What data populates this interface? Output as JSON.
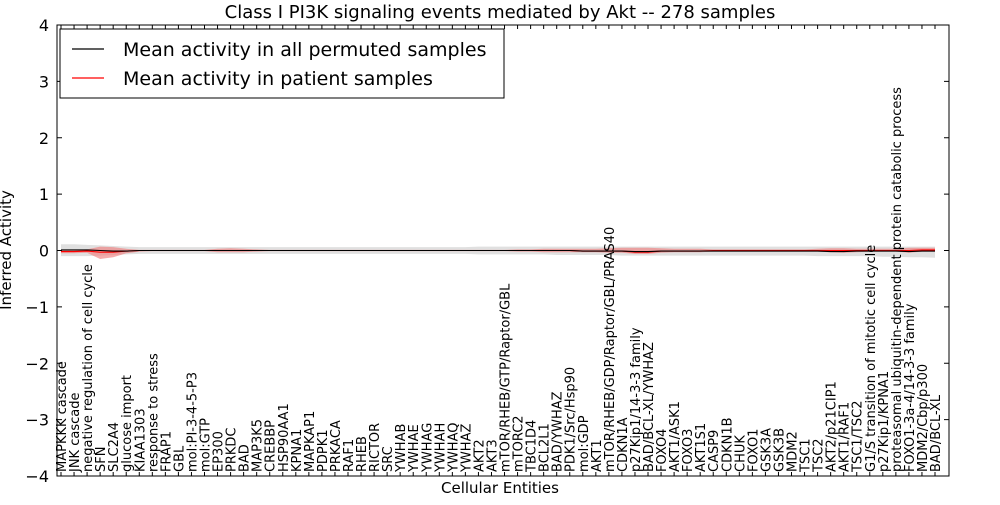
{
  "chart_data": {
    "type": "line",
    "title": "Class I PI3K signaling events mediated by Akt -- 278 samples",
    "xlabel": "Cellular Entities",
    "ylabel": "Inferred Activity",
    "ylim": [
      -4,
      4
    ],
    "yticks": [
      -4,
      -3,
      -2,
      -1,
      0,
      1,
      2,
      3,
      4
    ],
    "legend": {
      "position": "top-left",
      "entries": [
        {
          "label": "Mean activity in all permuted samples",
          "color": "#000000"
        },
        {
          "label": "Mean activity in patient samples",
          "color": "#ff0000"
        }
      ]
    },
    "colors": {
      "permuted_line": "#000000",
      "patient_line": "#ff0000",
      "permuted_band": "#cccccc",
      "patient_band": "#f08080"
    },
    "categories": [
      "MAPKKK cascade",
      "JNK cascade",
      "negative regulation of cell cycle",
      "SFN",
      "SLC2A4",
      "glucose import",
      "KIAA1303",
      "response to stress",
      "FRAP1",
      "GBL",
      "mol:PI-3-4-5-P3",
      "mol:GTP",
      "EP300",
      "PRKDC",
      "BAD",
      "MAP3K5",
      "CREBBP",
      "HSP90AA1",
      "KPNA1",
      "MAPKAP1",
      "PDPK1",
      "PRKACA",
      "RAF1",
      "RHEB",
      "RICTOR",
      "SRC",
      "YWHAB",
      "YWHAE",
      "YWHAG",
      "YWHAH",
      "YWHAQ",
      "YWHAZ",
      "AKT2",
      "AKT3",
      "mTOR/RHEB/GTP/Raptor/GBL",
      "mTORC2",
      "TBC1D4",
      "BCL2L1",
      "BAD/YWHAZ",
      "PDK1/Src/Hsp90",
      "mol:GDP",
      "AKT1",
      "mTOR/RHEB/GDP/Raptor/GBL/PRAS40",
      "CDKN1A",
      "p27Kip1/14-3-3 family",
      "BAD/BCL-XL/YWHAZ",
      "FOXO4",
      "AKT1/ASK1",
      "FOXO3",
      "AKT1S1",
      "CASP9",
      "CDKN1B",
      "CHUK",
      "FOXO1",
      "GSK3A",
      "GSK3B",
      "MDM2",
      "TSC1",
      "TSC2",
      "AKT2/p21CIP1",
      "AKT1/RAF1",
      "TSC1/TSC2",
      "G1/S transition of mitotic cell cycle",
      "p27Kip1/KPNA1",
      "proteasomal ubiquitin-dependent protein catabolic process",
      "FOXO1-3a-4/14-3-3 family",
      "MDM2/Cbp/p300",
      "BAD/BCL-XL"
    ],
    "series": [
      {
        "name": "Mean activity in all permuted samples",
        "values": [
          0.01,
          0.01,
          0.01,
          0.0,
          -0.01,
          -0.01,
          0.0,
          0.0,
          0.0,
          0.0,
          0.0,
          0.0,
          0.0,
          0.0,
          0.0,
          0.0,
          0.0,
          0.0,
          0.0,
          0.0,
          0.0,
          0.0,
          0.0,
          0.0,
          0.0,
          0.0,
          0.0,
          0.0,
          0.0,
          0.0,
          0.0,
          0.0,
          0.0,
          0.0,
          0.0,
          0.0,
          0.0,
          0.0,
          0.0,
          0.0,
          -0.01,
          -0.01,
          -0.01,
          -0.01,
          -0.02,
          -0.02,
          -0.01,
          -0.01,
          -0.01,
          -0.01,
          -0.01,
          -0.01,
          -0.01,
          -0.01,
          -0.01,
          -0.01,
          -0.01,
          -0.01,
          -0.01,
          -0.02,
          -0.02,
          -0.01,
          -0.01,
          -0.01,
          -0.01,
          -0.02,
          -0.01,
          -0.01
        ],
        "lower": [
          -0.1,
          -0.1,
          -0.1,
          -0.09,
          -0.08,
          -0.07,
          -0.06,
          -0.06,
          -0.06,
          -0.06,
          -0.06,
          -0.06,
          -0.06,
          -0.06,
          -0.06,
          -0.06,
          -0.06,
          -0.06,
          -0.06,
          -0.06,
          -0.06,
          -0.06,
          -0.06,
          -0.06,
          -0.06,
          -0.06,
          -0.06,
          -0.06,
          -0.06,
          -0.06,
          -0.06,
          -0.06,
          -0.07,
          -0.07,
          -0.07,
          -0.07,
          -0.07,
          -0.07,
          -0.08,
          -0.08,
          -0.08,
          -0.08,
          -0.08,
          -0.09,
          -0.09,
          -0.09,
          -0.09,
          -0.09,
          -0.09,
          -0.09,
          -0.09,
          -0.09,
          -0.09,
          -0.09,
          -0.09,
          -0.09,
          -0.09,
          -0.09,
          -0.1,
          -0.1,
          -0.1,
          -0.1,
          -0.1,
          -0.11,
          -0.11,
          -0.12,
          -0.12,
          -0.13
        ],
        "upper": [
          0.11,
          0.11,
          0.1,
          0.09,
          0.08,
          0.07,
          0.06,
          0.06,
          0.06,
          0.06,
          0.06,
          0.06,
          0.06,
          0.06,
          0.06,
          0.06,
          0.06,
          0.06,
          0.06,
          0.06,
          0.06,
          0.06,
          0.06,
          0.06,
          0.06,
          0.06,
          0.06,
          0.06,
          0.06,
          0.06,
          0.06,
          0.06,
          0.07,
          0.07,
          0.07,
          0.07,
          0.07,
          0.07,
          0.07,
          0.07,
          0.07,
          0.07,
          0.07,
          0.07,
          0.07,
          0.07,
          0.07,
          0.07,
          0.07,
          0.07,
          0.07,
          0.07,
          0.07,
          0.07,
          0.07,
          0.07,
          0.07,
          0.07,
          0.07,
          0.07,
          0.07,
          0.07,
          0.07,
          0.07,
          0.07,
          0.07,
          0.07,
          0.07
        ]
      },
      {
        "name": "Mean activity in patient samples",
        "values": [
          -0.02,
          -0.02,
          -0.01,
          -0.03,
          -0.03,
          -0.01,
          0.0,
          0.0,
          0.0,
          0.0,
          0.0,
          0.0,
          0.0,
          0.0,
          0.0,
          0.0,
          0.0,
          0.0,
          0.0,
          0.0,
          0.0,
          0.0,
          0.0,
          0.0,
          0.0,
          0.0,
          0.0,
          0.0,
          0.0,
          0.0,
          0.0,
          0.0,
          0.0,
          0.0,
          0.0,
          0.0,
          0.0,
          0.0,
          0.0,
          0.0,
          -0.01,
          -0.01,
          -0.01,
          -0.01,
          -0.03,
          -0.03,
          -0.01,
          -0.01,
          -0.01,
          -0.01,
          0.0,
          0.0,
          0.0,
          0.0,
          0.0,
          0.0,
          0.0,
          0.0,
          0.0,
          0.0,
          0.0,
          0.0,
          0.0,
          0.0,
          0.0,
          0.0,
          0.01,
          0.01
        ],
        "lower": [
          -0.05,
          -0.05,
          -0.04,
          -0.15,
          -0.12,
          -0.05,
          -0.02,
          -0.01,
          -0.01,
          -0.01,
          -0.01,
          -0.01,
          -0.03,
          -0.03,
          -0.03,
          -0.02,
          -0.01,
          -0.01,
          -0.01,
          -0.01,
          -0.01,
          -0.01,
          -0.01,
          -0.01,
          -0.01,
          -0.01,
          -0.01,
          -0.01,
          -0.01,
          -0.01,
          -0.01,
          -0.01,
          -0.01,
          -0.01,
          -0.01,
          -0.02,
          -0.02,
          -0.03,
          -0.03,
          -0.03,
          -0.03,
          -0.03,
          -0.04,
          -0.04,
          -0.06,
          -0.06,
          -0.04,
          -0.03,
          -0.03,
          -0.03,
          -0.02,
          -0.02,
          -0.02,
          -0.02,
          -0.02,
          -0.02,
          -0.02,
          -0.02,
          -0.02,
          -0.03,
          -0.04,
          -0.03,
          -0.02,
          -0.02,
          -0.02,
          -0.04,
          -0.02,
          -0.02
        ],
        "upper": [
          0.01,
          0.01,
          0.02,
          0.07,
          0.06,
          0.03,
          0.01,
          0.01,
          0.01,
          0.01,
          0.01,
          0.01,
          0.03,
          0.04,
          0.03,
          0.02,
          0.01,
          0.01,
          0.01,
          0.01,
          0.01,
          0.01,
          0.01,
          0.01,
          0.01,
          0.01,
          0.01,
          0.01,
          0.01,
          0.01,
          0.01,
          0.01,
          0.01,
          0.01,
          0.01,
          0.02,
          0.02,
          0.03,
          0.03,
          0.03,
          0.03,
          0.03,
          0.04,
          0.05,
          0.05,
          0.05,
          0.04,
          0.03,
          0.03,
          0.03,
          0.02,
          0.02,
          0.02,
          0.02,
          0.02,
          0.02,
          0.02,
          0.02,
          0.03,
          0.04,
          0.04,
          0.03,
          0.03,
          0.03,
          0.03,
          0.05,
          0.05,
          0.05
        ]
      }
    ]
  }
}
